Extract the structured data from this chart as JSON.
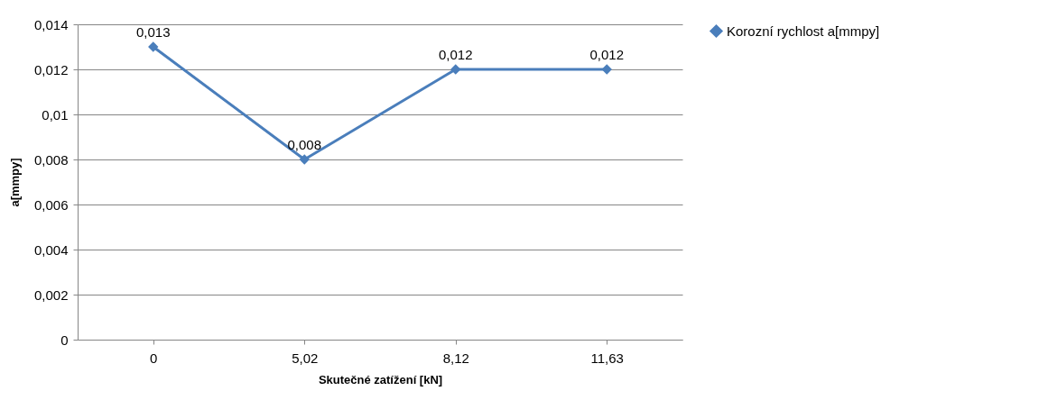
{
  "chart_data": {
    "type": "line",
    "xlabel": "Skutečné zatížení [kN]",
    "ylabel": "a[mmpy]",
    "categories": [
      "0",
      "5,02",
      "8,12",
      "11,63"
    ],
    "series": [
      {
        "name": "Korozní rychlost a[mmpy]",
        "color": "#4a7ebb",
        "values": [
          0.013,
          0.008,
          0.012,
          0.012
        ],
        "value_labels": [
          "0,013",
          "0,008",
          "0,012",
          "0,012"
        ]
      }
    ],
    "ylim": [
      0,
      0.014
    ],
    "yticks": [
      0,
      {
        "value": 0.002,
        "label": "0,002"
      },
      {
        "value": 0.004,
        "label": "0,004"
      },
      {
        "value": 0.006,
        "label": "0,006"
      },
      {
        "value": 0.008,
        "label": "0,008"
      },
      {
        "value": 0.01,
        "label": "0,01"
      },
      {
        "value": 0.012,
        "label": "0,012"
      },
      {
        "value": 0.014,
        "label": "0,014"
      }
    ],
    "grid": "y",
    "legend": "right",
    "marker": "diamond",
    "line_style": "solid"
  }
}
